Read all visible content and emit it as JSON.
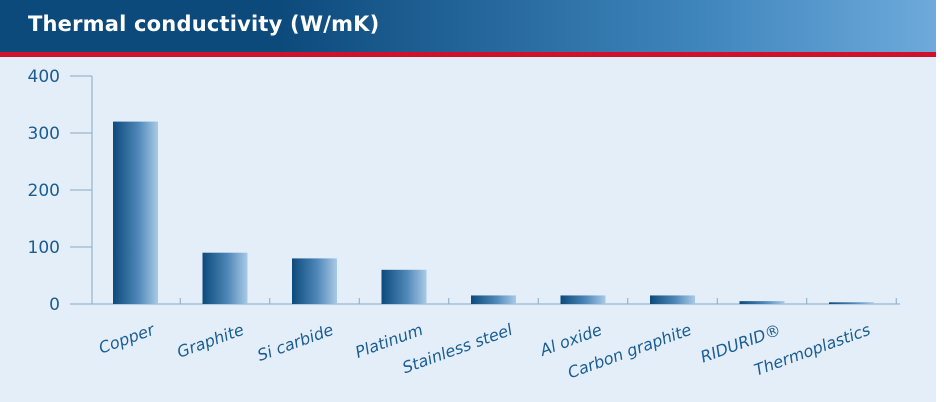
{
  "header": {
    "title": "Thermal conductivity (W/mK)"
  },
  "colors": {
    "header_dark": "#0d4a7c",
    "header_light": "#6eaadb",
    "accent_red": "#d0112b",
    "plot_bg": "#e3eef8",
    "text": "#1b5d93",
    "bar_dark": "#0d4a7c",
    "bar_light": "#a9cae6"
  },
  "chart_data": {
    "type": "bar",
    "title": "Thermal conductivity (W/mK)",
    "xlabel": "",
    "ylabel": "",
    "ylim": [
      0,
      400
    ],
    "yticks": [
      0,
      100,
      200,
      300,
      400
    ],
    "grid": false,
    "categories": [
      "Copper",
      "Graphite",
      "Si carbide",
      "Platinum",
      "Stainless steel",
      "Al oxide",
      "Carbon graphite",
      "RIDURID®",
      "Thermoplastics"
    ],
    "values": [
      320,
      90,
      80,
      60,
      15,
      15,
      15,
      5,
      3
    ]
  }
}
